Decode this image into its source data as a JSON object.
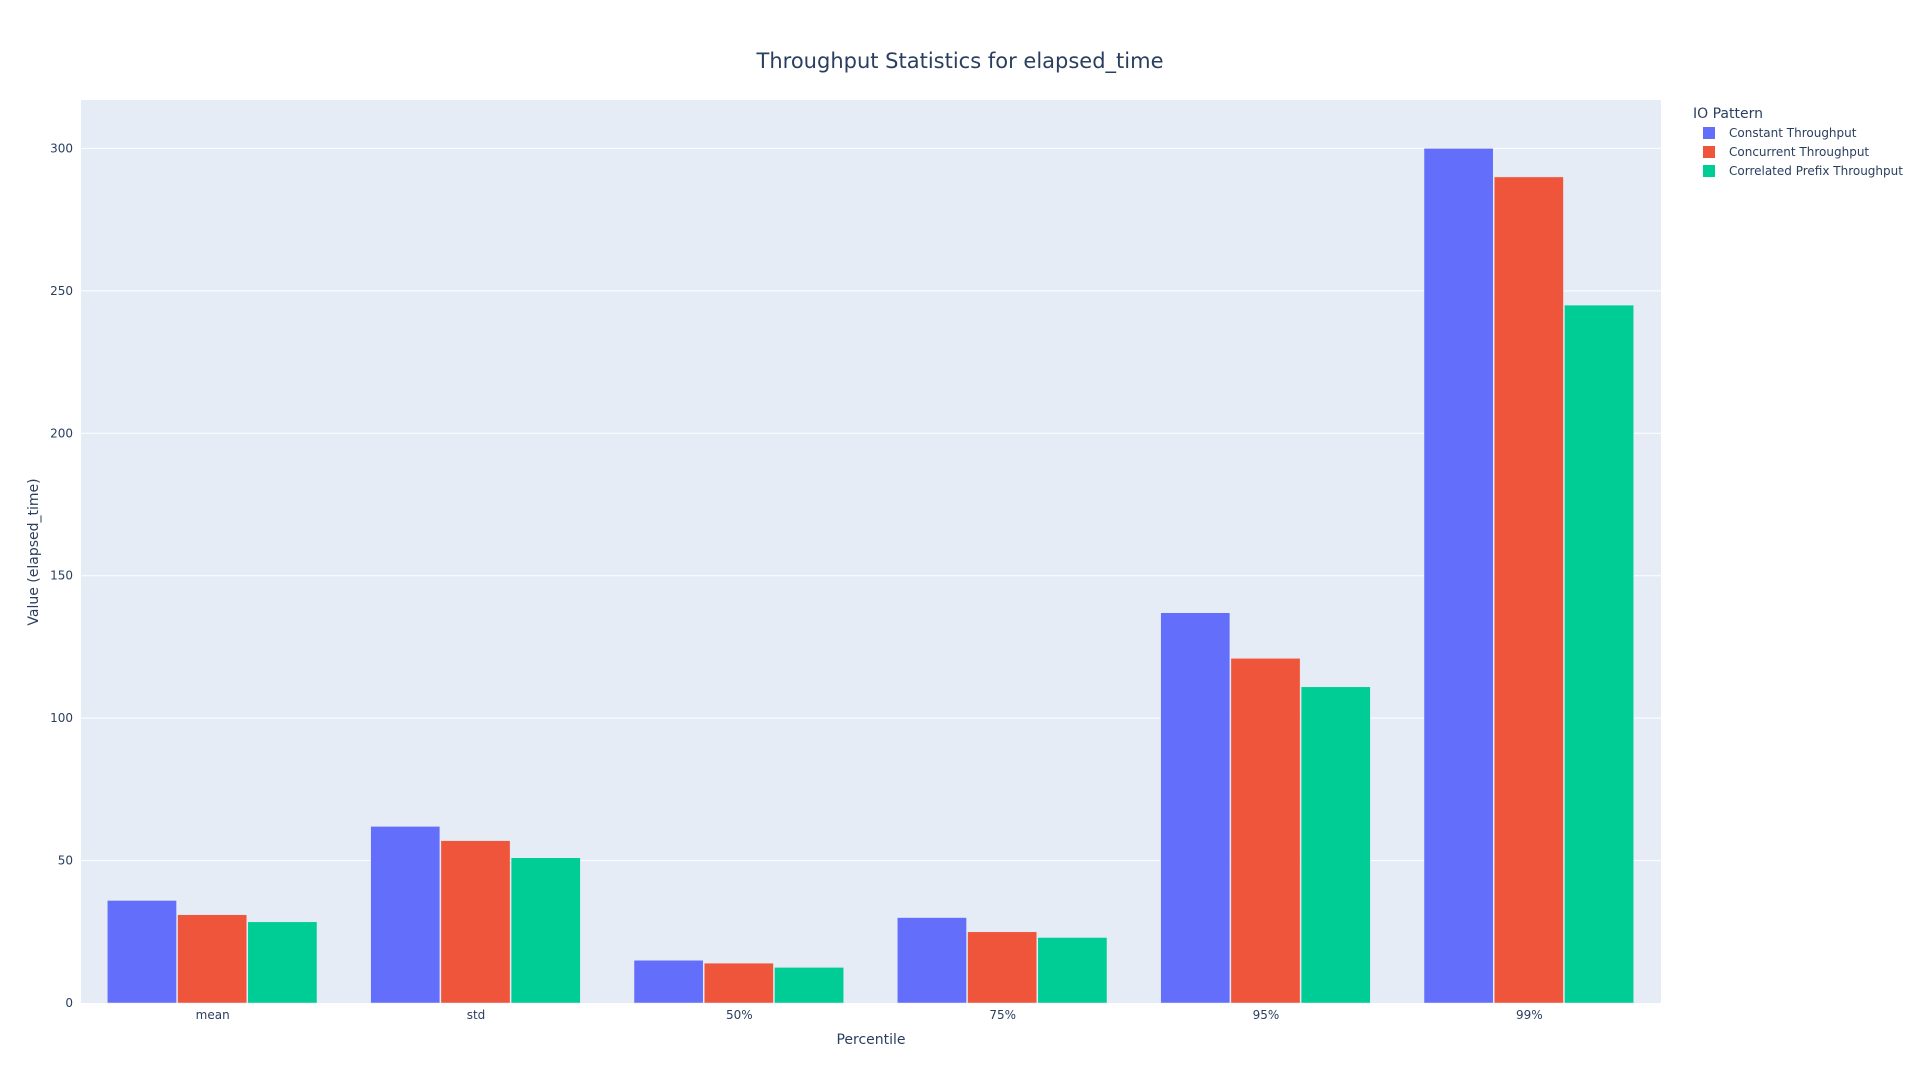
{
  "chart_data": {
    "type": "bar",
    "title": "Throughput Statistics for elapsed_time",
    "xlabel": "Percentile",
    "ylabel": "Value (elapsed_time)",
    "categories": [
      "mean",
      "std",
      "50%",
      "75%",
      "95%",
      "99%"
    ],
    "ylim": [
      0,
      317
    ],
    "yticks": [
      0,
      50,
      100,
      150,
      200,
      250,
      300
    ],
    "grid": true,
    "legend": {
      "title": "IO Pattern",
      "placement": "top-right, outside plot"
    },
    "series": [
      {
        "name": "Constant Throughput",
        "color": "#636efa",
        "values": [
          36,
          62,
          15,
          30,
          137,
          300
        ]
      },
      {
        "name": "Concurrent Throughput",
        "color": "#ef553b",
        "values": [
          31,
          57,
          14,
          25,
          121,
          290
        ]
      },
      {
        "name": "Correlated Prefix Throughput",
        "color": "#00cc96",
        "values": [
          28.5,
          51,
          12.5,
          23,
          111,
          245
        ]
      }
    ]
  },
  "colors": {
    "plot_background": "#e5ecf6",
    "grid": "#ffffff",
    "text": "#2a3f5f"
  }
}
